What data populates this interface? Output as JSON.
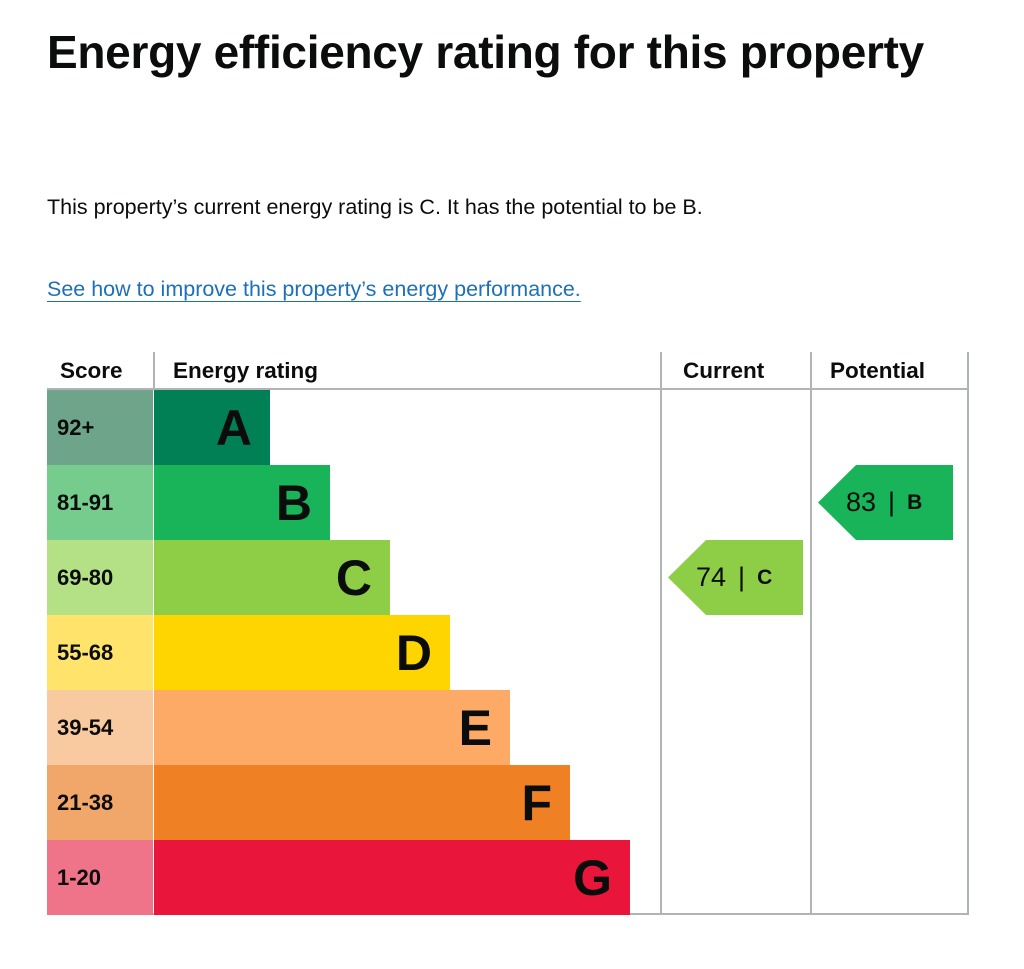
{
  "page": {
    "title": "Energy efficiency rating for this property",
    "summary": "This property’s current energy rating is C. It has the potential to be B.",
    "improve_link": "See how to improve this property’s energy performance."
  },
  "chart": {
    "headers": {
      "score": "Score",
      "rating": "Energy rating",
      "current": "Current",
      "potential": "Potential"
    },
    "bands": [
      {
        "letter": "A",
        "range": "92+",
        "color": "#008054",
        "score_color": "#6ea58a"
      },
      {
        "letter": "B",
        "range": "81-91",
        "color": "#19b459",
        "score_color": "#75cc8c"
      },
      {
        "letter": "C",
        "range": "69-80",
        "color": "#8dce46",
        "score_color": "#b4e086"
      },
      {
        "letter": "D",
        "range": "55-68",
        "color": "#ffd500",
        "score_color": "#ffe36b"
      },
      {
        "letter": "E",
        "range": "39-54",
        "color": "#fcaa65",
        "score_color": "#f9c9a0"
      },
      {
        "letter": "F",
        "range": "21-38",
        "color": "#ef8023",
        "score_color": "#f2a76a"
      },
      {
        "letter": "G",
        "range": "1-20",
        "color": "#e9153b",
        "score_color": "#ef7489"
      }
    ],
    "current": {
      "score": "74",
      "separator": "|",
      "letter": "C",
      "color": "#8dce46"
    },
    "potential": {
      "score": "83",
      "separator": "|",
      "letter": "B",
      "color": "#19b459"
    }
  }
}
